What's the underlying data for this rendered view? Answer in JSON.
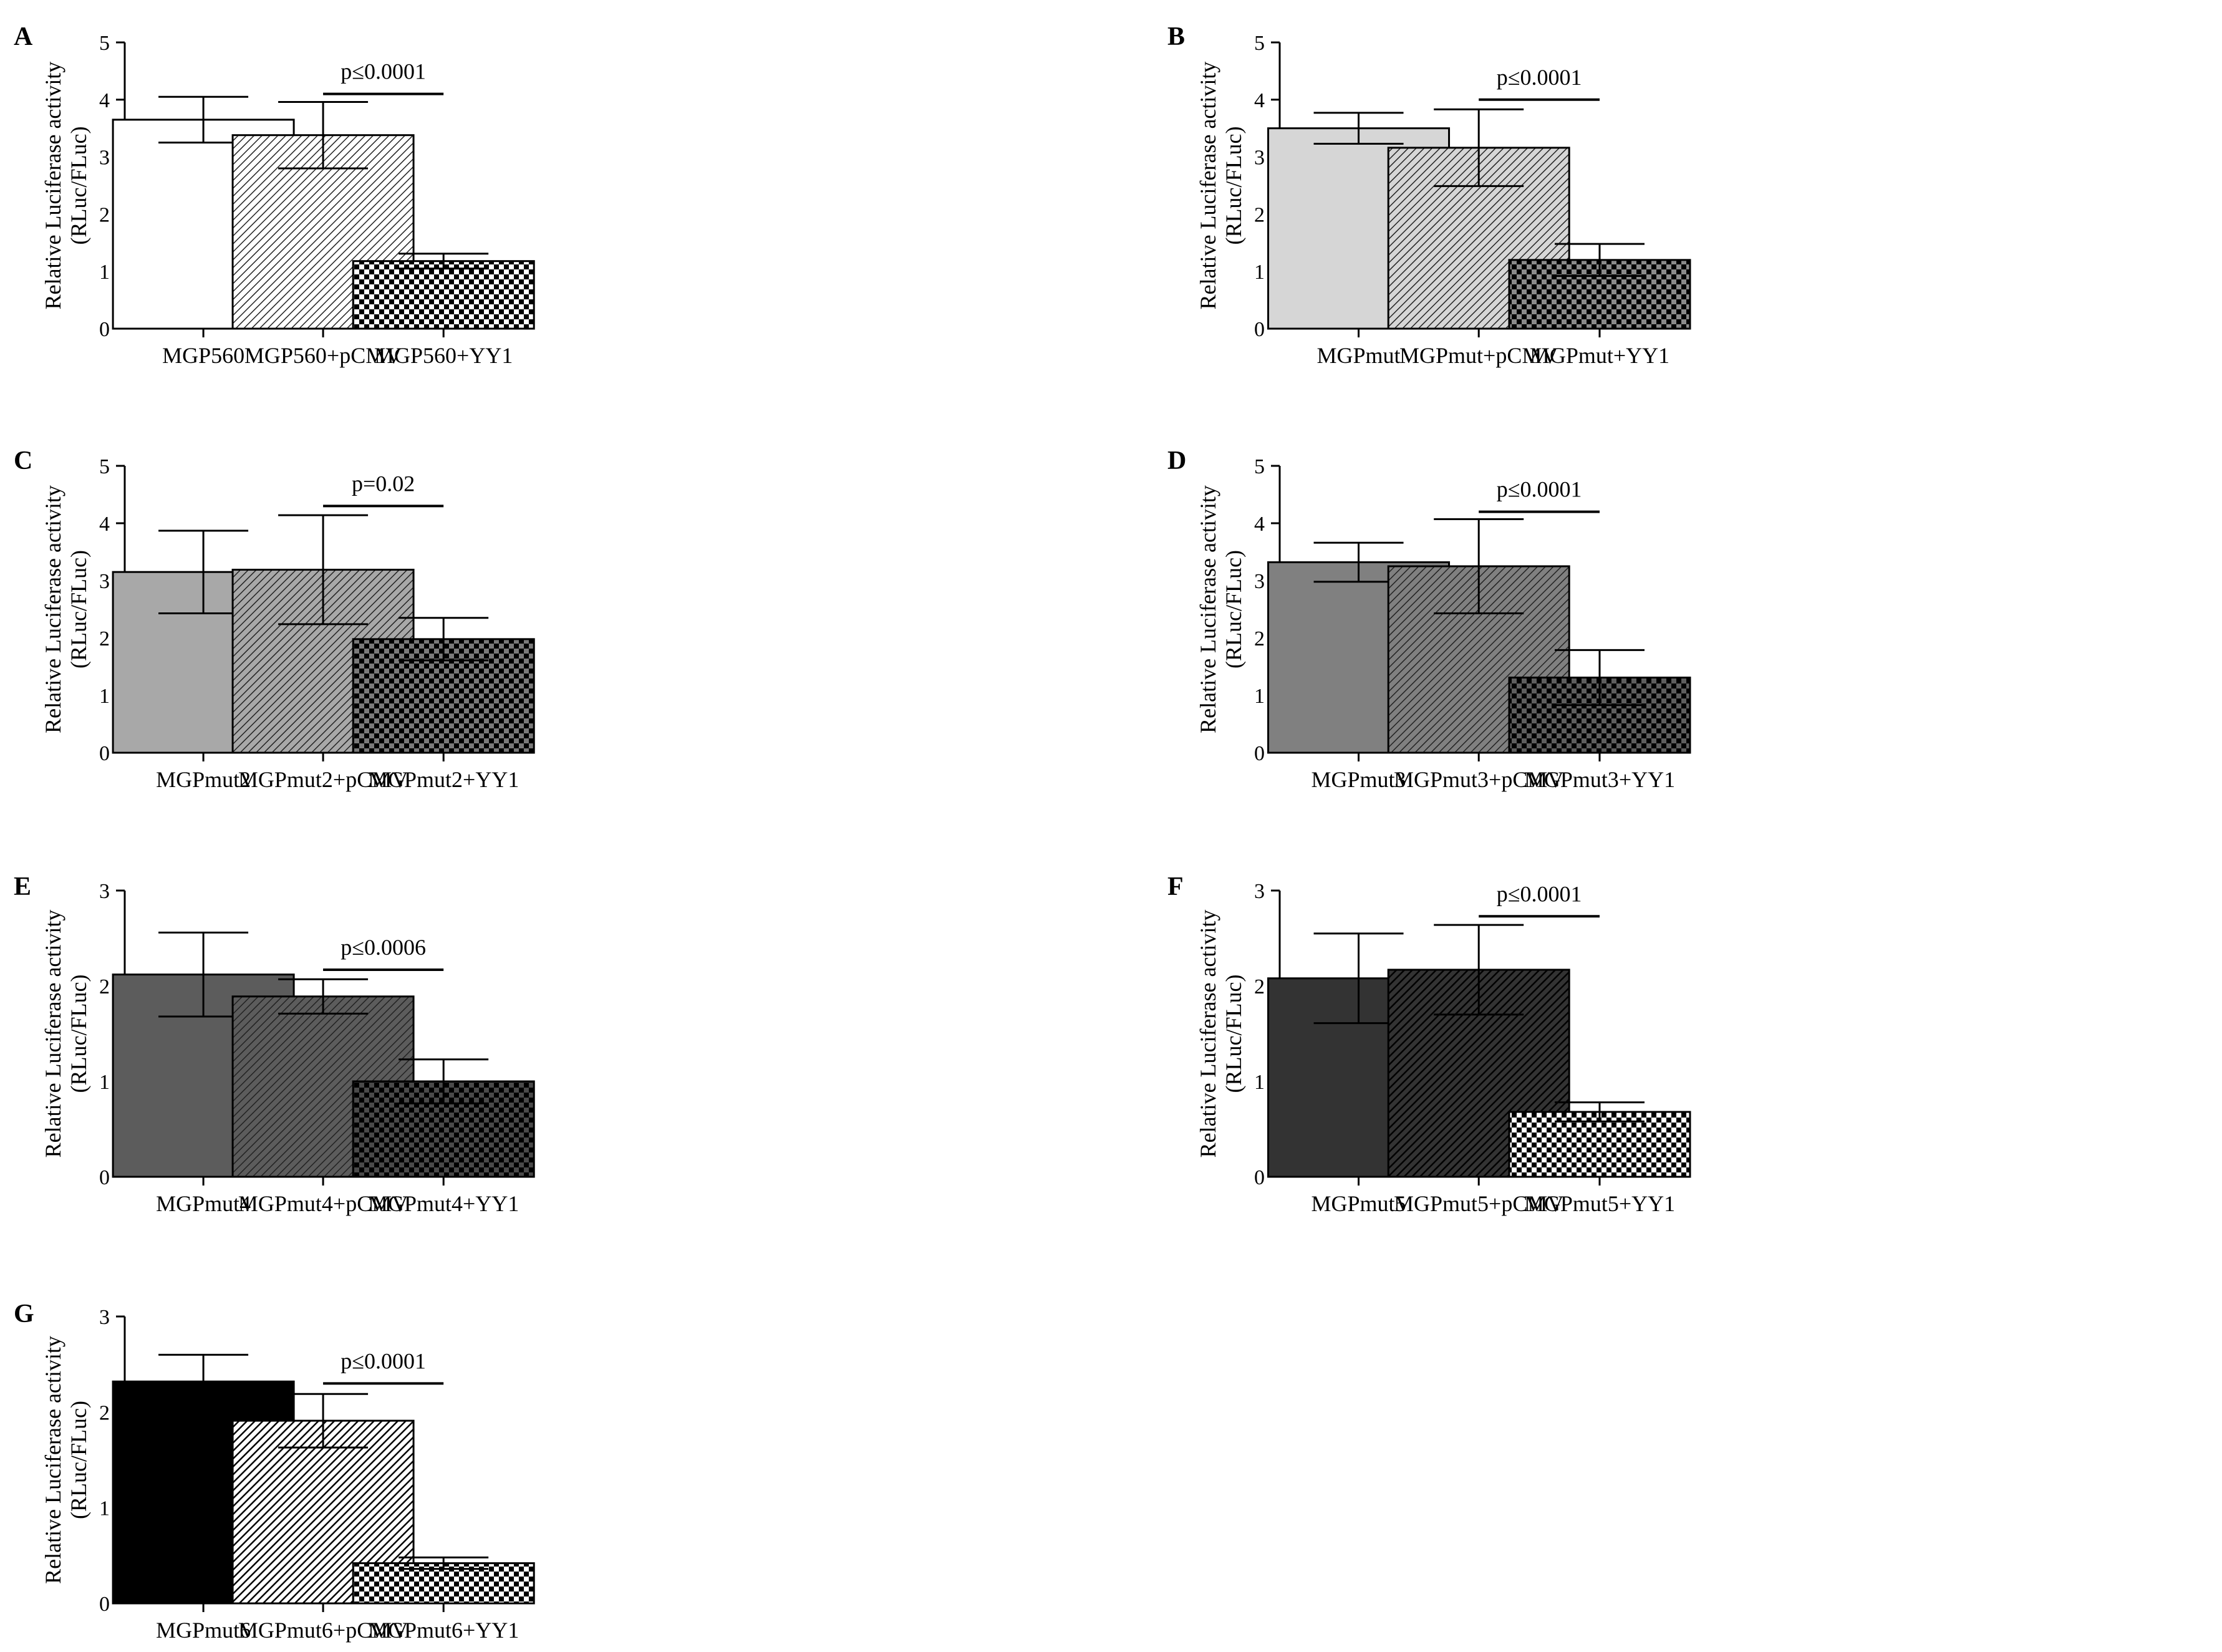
{
  "figure": {
    "background": "#ffffff",
    "axis_color": "#000000"
  },
  "chart_data": [
    {
      "type": "bar",
      "panel": "A",
      "ylabel_line1": "Relative Luciferase activity",
      "ylabel_line2": "(RLuc/FLuc)",
      "ylim": [
        0,
        5
      ],
      "yticks": [
        "0",
        "1",
        "2",
        "3",
        "4",
        "5"
      ],
      "categories": [
        "MGP560",
        "MGP560+pCMV",
        "MGP560+YY1"
      ],
      "values": [
        3.65,
        3.38,
        1.18
      ],
      "errors": [
        0.4,
        0.58,
        0.13
      ],
      "fills": [
        "white",
        "hatch",
        "check"
      ],
      "colors": [
        "#ffffff",
        "#ffffff",
        "#ffffff"
      ],
      "significance": {
        "label": "p≤0.0001",
        "from": 1,
        "to": 2,
        "y": 4.1
      }
    },
    {
      "type": "bar",
      "panel": "B",
      "ylabel_line1": "Relative Luciferase activity",
      "ylabel_line2": "(RLuc/FLuc)",
      "ylim": [
        0,
        5
      ],
      "yticks": [
        "0",
        "1",
        "2",
        "3",
        "4",
        "5"
      ],
      "categories": [
        "MGPmut",
        "MGPmut+pCMV",
        "MGPmut+YY1"
      ],
      "values": [
        3.5,
        3.16,
        1.2
      ],
      "errors": [
        0.27,
        0.67,
        0.28
      ],
      "fills": [
        "solid",
        "hatch",
        "check"
      ],
      "colors": [
        "#d6d6d6",
        "#d6d6d6",
        "#8a8a8a"
      ],
      "significance": {
        "label": "p≤0.0001",
        "from": 1,
        "to": 2,
        "y": 4.0
      }
    },
    {
      "type": "bar",
      "panel": "C",
      "ylabel_line1": "Relative Luciferase activity",
      "ylabel_line2": "(RLuc/FLuc)",
      "ylim": [
        0,
        5
      ],
      "yticks": [
        "0",
        "1",
        "2",
        "3",
        "4",
        "5"
      ],
      "categories": [
        "MGPmut2",
        "MGPmut2+pCMV",
        "MGPmut2+YY1"
      ],
      "values": [
        3.15,
        3.19,
        1.98
      ],
      "errors": [
        0.72,
        0.95,
        0.37
      ],
      "fills": [
        "solid",
        "hatch",
        "check"
      ],
      "colors": [
        "#a8a8a8",
        "#a8a8a8",
        "#7a7a7a"
      ],
      "significance": {
        "label": "p=0.02",
        "from": 1,
        "to": 2,
        "y": 4.3
      }
    },
    {
      "type": "bar",
      "panel": "D",
      "ylabel_line1": "Relative Luciferase activity",
      "ylabel_line2": "(RLuc/FLuc)",
      "ylim": [
        0,
        5
      ],
      "yticks": [
        "0",
        "1",
        "2",
        "3",
        "4",
        "5"
      ],
      "categories": [
        "MGPmut3",
        "MGPmut3+pCMV",
        "MGPmut3+YY1"
      ],
      "values": [
        3.32,
        3.25,
        1.31
      ],
      "errors": [
        0.34,
        0.82,
        0.48
      ],
      "fills": [
        "solid",
        "hatch",
        "check"
      ],
      "colors": [
        "#808080",
        "#808080",
        "#5e5e5e"
      ],
      "significance": {
        "label": "p≤0.0001",
        "from": 1,
        "to": 2,
        "y": 4.2
      }
    },
    {
      "type": "bar",
      "panel": "E",
      "ylabel_line1": "Relative Luciferase activity",
      "ylabel_line2": "(RLuc/FLuc)",
      "ylim": [
        0,
        3
      ],
      "yticks": [
        "0",
        "1",
        "2",
        "3"
      ],
      "categories": [
        "MGPmut4",
        "MGPmut4+pCMV",
        "MGPmut4+YY1"
      ],
      "values": [
        2.12,
        1.89,
        1.0
      ],
      "errors": [
        0.44,
        0.18,
        0.23
      ],
      "fills": [
        "solid",
        "hatch",
        "check"
      ],
      "colors": [
        "#5c5c5c",
        "#5c5c5c",
        "#4a4a4a"
      ],
      "significance": {
        "label": "p≤0.0006",
        "from": 1,
        "to": 2,
        "y": 2.17
      }
    },
    {
      "type": "bar",
      "panel": "F",
      "ylabel_line1": "Relative Luciferase activity",
      "ylabel_line2": "(RLuc/FLuc)",
      "ylim": [
        0,
        3
      ],
      "yticks": [
        "0",
        "1",
        "2",
        "3"
      ],
      "categories": [
        "MGPmut5",
        "MGPmut5+pCMV",
        "MGPmut5+YY1"
      ],
      "values": [
        2.08,
        2.17,
        0.68
      ],
      "errors": [
        0.47,
        0.47,
        0.1
      ],
      "fills": [
        "solid",
        "hatch",
        "check"
      ],
      "colors": [
        "#333333",
        "#333333",
        "#ffffff"
      ],
      "significance": {
        "label": "p≤0.0001",
        "from": 1,
        "to": 2,
        "y": 2.73
      }
    },
    {
      "type": "bar",
      "panel": "G",
      "ylabel_line1": "Relative Luciferase activity",
      "ylabel_line2": "(RLuc/FLuc)",
      "ylim": [
        0,
        3
      ],
      "yticks": [
        "0",
        "1",
        "2",
        "3"
      ],
      "categories": [
        "MGPmut6",
        "MGPmut6+pCMV",
        "MGPmut6+YY1"
      ],
      "values": [
        2.32,
        1.91,
        0.42
      ],
      "errors": [
        0.28,
        0.28,
        0.06
      ],
      "fills": [
        "solid",
        "hatch",
        "check"
      ],
      "colors": [
        "#000000",
        "#000000",
        "#ffffff"
      ],
      "significance": {
        "label": "p≤0.0001",
        "from": 1,
        "to": 2,
        "y": 2.3
      }
    }
  ]
}
